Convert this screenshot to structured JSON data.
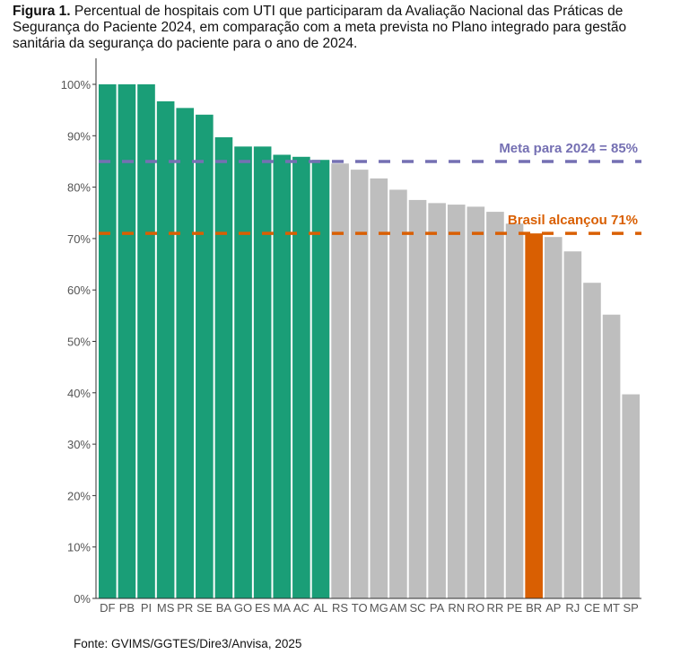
{
  "caption": {
    "label": "Figura 1.",
    "text": "Percentual de hospitais com UTI que participaram da Avaliação Nacional das Práticas de Segurança do Paciente 2024, em comparação com a meta prevista no Plano integrado para gestão sanitária da segurança do paciente para o ano de 2024."
  },
  "source": "Fonte: GVIMS/GGTES/Dire3/Anvisa, 2025",
  "chart_data": {
    "type": "bar",
    "categories": [
      "DF",
      "PB",
      "PI",
      "MS",
      "PR",
      "SE",
      "BA",
      "GO",
      "ES",
      "MA",
      "AC",
      "AL",
      "RS",
      "TO",
      "MG",
      "AM",
      "SC",
      "PA",
      "RN",
      "RO",
      "RR",
      "PE",
      "BR",
      "AP",
      "RJ",
      "CE",
      "MT",
      "SP"
    ],
    "values": [
      100,
      100,
      100,
      96.7,
      95.4,
      94.1,
      89.7,
      87.9,
      87.9,
      86.3,
      85.9,
      85.3,
      84.6,
      83.4,
      81.7,
      79.5,
      77.5,
      76.9,
      76.6,
      76.2,
      75.2,
      72.9,
      71,
      70.3,
      67.5,
      61.4,
      55.2,
      39.7
    ],
    "ylim": [
      0,
      100
    ],
    "yticks": [
      "0%",
      "10%",
      "20%",
      "30%",
      "40%",
      "50%",
      "60%",
      "70%",
      "80%",
      "90%",
      "100%"
    ],
    "grid": false,
    "colors": {
      "meets_goal": "#1a9e77",
      "below_goal": "#bebebe",
      "brasil": "#d95f02",
      "meta_line": "#7570b3",
      "brasil_line": "#d95f02"
    },
    "reference_lines": [
      {
        "value": 85,
        "label": "Meta para 2024 = 85%",
        "color": "#7570b3"
      },
      {
        "value": 71,
        "label": "Brasil alcançou 71%",
        "color": "#d95f02"
      }
    ]
  }
}
